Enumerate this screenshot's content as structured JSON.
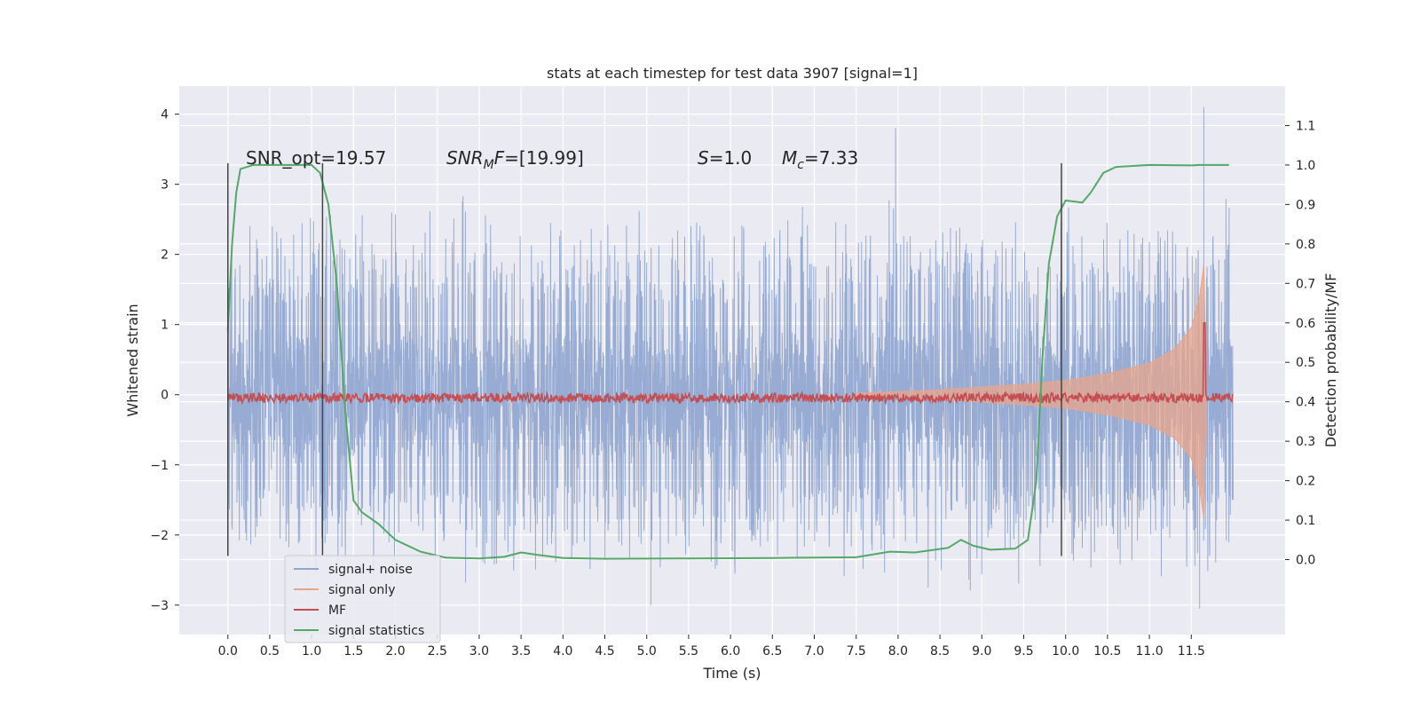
{
  "chart_data": {
    "type": "line",
    "title": "stats at each timestep for test data 3907 [signal=1]",
    "xlabel": "Time (s)",
    "ylabel_left": "Whitened strain",
    "ylabel_right": "Detection probability/MF",
    "xlim": [
      -0.58,
      12.62
    ],
    "ylim_left": [
      -3.42,
      4.4
    ],
    "ylim_right": [
      -0.19,
      1.2
    ],
    "grid": true,
    "legend_position": "lower-left",
    "x_ticks": [
      "0.0",
      "0.5",
      "1.0",
      "1.5",
      "2.0",
      "2.5",
      "3.0",
      "3.5",
      "4.0",
      "4.5",
      "5.0",
      "5.5",
      "6.0",
      "6.5",
      "7.0",
      "7.5",
      "8.0",
      "8.5",
      "9.0",
      "9.5",
      "10.0",
      "10.5",
      "11.0",
      "11.5"
    ],
    "y_left_ticks": [
      "−3",
      "−2",
      "−1",
      "0",
      "1",
      "2",
      "3",
      "4"
    ],
    "y_right_ticks": [
      "0.0",
      "0.1",
      "0.2",
      "0.3",
      "0.4",
      "0.5",
      "0.6",
      "0.7",
      "0.8",
      "0.9",
      "1.0",
      "1.1"
    ],
    "annotations": {
      "snr_opt": "SNR_opt=19.57",
      "snr_mf_symbol": "SNR",
      "snr_mf_subscript": "M",
      "snr_mf_suffix": "F",
      "snr_mf_value": "=[19.99]",
      "s_symbol": "S",
      "s_value": "=1.0",
      "mc_symbol": "M",
      "mc_subscript": "c",
      "mc_value": "=7.33"
    },
    "vertical_markers": [
      {
        "x": 0.0,
        "ymin": -2.3,
        "ymax": 3.3
      },
      {
        "x": 1.13,
        "ymin": -2.3,
        "ymax": 3.3
      },
      {
        "x": 9.95,
        "ymin": -2.3,
        "ymax": 3.3
      }
    ],
    "series": [
      {
        "name": "signal+ noise",
        "color": "#8fa5cf",
        "axis": "left",
        "kind": "noise-band",
        "x_range": [
          0.0,
          12.0
        ],
        "core_amplitude": 1.0,
        "peak_range": [
          1.3,
          2.9
        ],
        "notable_peaks": [
          [
            7.97,
            3.8
          ],
          [
            11.65,
            4.1
          ],
          [
            5.05,
            -3.0
          ],
          [
            11.6,
            -3.05
          ]
        ]
      },
      {
        "name": "signal only",
        "color": "#e8a58c",
        "axis": "left",
        "kind": "chirp-envelope",
        "envelope": [
          [
            7.5,
            0.02
          ],
          [
            8.5,
            0.07
          ],
          [
            9.5,
            0.15
          ],
          [
            10.0,
            0.2
          ],
          [
            10.5,
            0.3
          ],
          [
            11.0,
            0.45
          ],
          [
            11.3,
            0.65
          ],
          [
            11.5,
            0.95
          ],
          [
            11.6,
            1.4
          ],
          [
            11.65,
            1.85
          ],
          [
            11.68,
            0.0
          ]
        ]
      },
      {
        "name": "MF",
        "color": "#c44e52",
        "axis": "right",
        "kind": "noisy-line",
        "baseline": 0.41,
        "jitter": 0.012,
        "spike": [
          11.66,
          0.6
        ]
      },
      {
        "name": "signal statistics",
        "color": "#55a868",
        "axis": "right",
        "kind": "line",
        "points": [
          [
            0.0,
            0.58
          ],
          [
            0.05,
            0.8
          ],
          [
            0.1,
            0.93
          ],
          [
            0.15,
            0.99
          ],
          [
            0.3,
            1.0
          ],
          [
            1.0,
            1.0
          ],
          [
            1.1,
            0.98
          ],
          [
            1.2,
            0.9
          ],
          [
            1.3,
            0.7
          ],
          [
            1.4,
            0.38
          ],
          [
            1.5,
            0.15
          ],
          [
            1.6,
            0.12
          ],
          [
            1.8,
            0.09
          ],
          [
            2.0,
            0.05
          ],
          [
            2.3,
            0.02
          ],
          [
            2.6,
            0.005
          ],
          [
            3.0,
            0.003
          ],
          [
            3.3,
            0.007
          ],
          [
            3.5,
            0.018
          ],
          [
            3.7,
            0.012
          ],
          [
            4.0,
            0.004
          ],
          [
            4.5,
            0.002
          ],
          [
            5.5,
            0.003
          ],
          [
            6.5,
            0.004
          ],
          [
            7.5,
            0.006
          ],
          [
            7.9,
            0.02
          ],
          [
            8.2,
            0.018
          ],
          [
            8.6,
            0.03
          ],
          [
            8.75,
            0.05
          ],
          [
            8.9,
            0.035
          ],
          [
            9.1,
            0.025
          ],
          [
            9.4,
            0.028
          ],
          [
            9.55,
            0.05
          ],
          [
            9.65,
            0.2
          ],
          [
            9.72,
            0.5
          ],
          [
            9.8,
            0.75
          ],
          [
            9.9,
            0.87
          ],
          [
            10.0,
            0.91
          ],
          [
            10.2,
            0.905
          ],
          [
            10.3,
            0.93
          ],
          [
            10.45,
            0.98
          ],
          [
            10.6,
            0.995
          ],
          [
            11.0,
            1.0
          ],
          [
            11.5,
            0.999
          ],
          [
            11.6,
            1.0
          ],
          [
            11.95,
            1.0
          ]
        ]
      }
    ]
  }
}
